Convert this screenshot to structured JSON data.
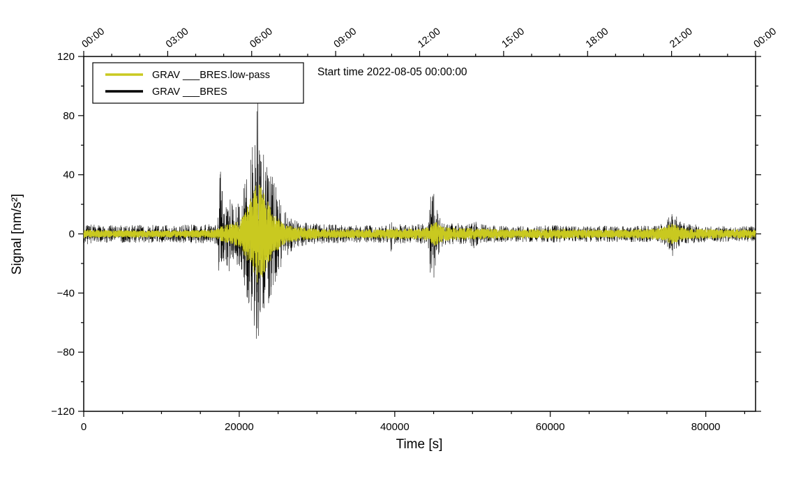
{
  "chart_data": {
    "type": "line",
    "title": "Start time 2022-08-05 00:00:00",
    "xlabel": "Time [s]",
    "ylabel": "Signal [nm/s²]",
    "xlim": [
      0,
      86400
    ],
    "ylim": [
      -120,
      120
    ],
    "grid": false,
    "x_ticks": [
      0,
      20000,
      40000,
      60000,
      80000
    ],
    "x_minor_step": 5000,
    "y_ticks": [
      -120,
      -80,
      -40,
      0,
      40,
      80,
      120
    ],
    "y_minor_step": 20,
    "top_axis": {
      "tick_seconds": [
        0,
        10800,
        21600,
        32400,
        43200,
        54000,
        64800,
        75600,
        86400
      ],
      "labels": [
        "00:00",
        "03:00",
        "06:00",
        "09:00",
        "12:00",
        "15:00",
        "18:00",
        "21:00",
        "00:00"
      ],
      "minor_step": 3600
    },
    "legend": {
      "position": "top-left",
      "entries": [
        {
          "label": "GRAV ___BRES.low-pass",
          "color": "#c9c920"
        },
        {
          "label": "GRAV ___BRES",
          "color": "#000000"
        }
      ]
    },
    "series": [
      {
        "name": "GRAV ___BRES",
        "mode": "raw",
        "color": "#000000",
        "line_width": 0.6,
        "envelope": [
          [
            0,
            8
          ],
          [
            800,
            6.5
          ],
          [
            2000,
            6
          ],
          [
            4000,
            6
          ],
          [
            6000,
            6
          ],
          [
            8000,
            6
          ],
          [
            10000,
            6
          ],
          [
            12000,
            6
          ],
          [
            14000,
            6.5
          ],
          [
            16000,
            6.5
          ],
          [
            17200,
            7
          ],
          [
            17500,
            40
          ],
          [
            17700,
            45
          ],
          [
            17900,
            18
          ],
          [
            18300,
            22
          ],
          [
            18700,
            28
          ],
          [
            19200,
            20
          ],
          [
            19700,
            22
          ],
          [
            20200,
            28
          ],
          [
            20700,
            38
          ],
          [
            21200,
            50
          ],
          [
            21700,
            62
          ],
          [
            22100,
            80
          ],
          [
            22350,
            95
          ],
          [
            22600,
            72
          ],
          [
            22900,
            62
          ],
          [
            23200,
            58
          ],
          [
            23600,
            50
          ],
          [
            24000,
            44
          ],
          [
            24400,
            38
          ],
          [
            24800,
            30
          ],
          [
            25200,
            25
          ],
          [
            25600,
            20
          ],
          [
            26000,
            16
          ],
          [
            26500,
            13
          ],
          [
            27000,
            11
          ],
          [
            27500,
            9
          ],
          [
            28500,
            8
          ],
          [
            30000,
            7
          ],
          [
            32000,
            6.5
          ],
          [
            34000,
            6
          ],
          [
            36000,
            6
          ],
          [
            38000,
            6
          ],
          [
            39300,
            6
          ],
          [
            39500,
            16
          ],
          [
            39700,
            6
          ],
          [
            40000,
            7
          ],
          [
            42000,
            6
          ],
          [
            43800,
            7
          ],
          [
            44300,
            10
          ],
          [
            44600,
            28
          ],
          [
            44900,
            33
          ],
          [
            45200,
            26
          ],
          [
            45500,
            16
          ],
          [
            45900,
            11
          ],
          [
            46500,
            9
          ],
          [
            47500,
            7.5
          ],
          [
            48500,
            7
          ],
          [
            49500,
            6.5
          ],
          [
            50300,
            12
          ],
          [
            50700,
            7
          ],
          [
            52000,
            6
          ],
          [
            54000,
            5.5
          ],
          [
            56000,
            5.5
          ],
          [
            58000,
            5.5
          ],
          [
            60000,
            6
          ],
          [
            62000,
            5.5
          ],
          [
            64000,
            5.5
          ],
          [
            66000,
            5.5
          ],
          [
            68000,
            5.5
          ],
          [
            70000,
            5.5
          ],
          [
            72000,
            5.5
          ],
          [
            74000,
            6
          ],
          [
            74800,
            8
          ],
          [
            75300,
            15
          ],
          [
            75700,
            18
          ],
          [
            76100,
            13
          ],
          [
            76600,
            9
          ],
          [
            77200,
            7
          ],
          [
            78500,
            6.5
          ],
          [
            80000,
            5.5
          ],
          [
            82000,
            5.5
          ],
          [
            84000,
            5
          ],
          [
            86400,
            5.5
          ]
        ]
      },
      {
        "name": "GRAV ___BRES.low-pass",
        "mode": "band",
        "color": "#c9c920",
        "line_width": 1.0,
        "envelope": [
          [
            0,
            3
          ],
          [
            2000,
            2.5
          ],
          [
            6000,
            2.5
          ],
          [
            10000,
            2.5
          ],
          [
            14000,
            2.5
          ],
          [
            17000,
            3
          ],
          [
            17600,
            5
          ],
          [
            18200,
            6
          ],
          [
            19000,
            7
          ],
          [
            19800,
            9
          ],
          [
            20400,
            12
          ],
          [
            20900,
            17
          ],
          [
            21400,
            24
          ],
          [
            21900,
            30
          ],
          [
            22300,
            35
          ],
          [
            22700,
            33
          ],
          [
            23100,
            29
          ],
          [
            23500,
            24
          ],
          [
            24000,
            19
          ],
          [
            24500,
            14
          ],
          [
            25000,
            11
          ],
          [
            25600,
            8
          ],
          [
            26300,
            6
          ],
          [
            27000,
            5
          ],
          [
            28000,
            4.5
          ],
          [
            30000,
            3.5
          ],
          [
            33000,
            3
          ],
          [
            36000,
            3
          ],
          [
            40000,
            3.5
          ],
          [
            43000,
            3.5
          ],
          [
            44400,
            5
          ],
          [
            44800,
            8
          ],
          [
            45300,
            8
          ],
          [
            45800,
            6
          ],
          [
            46500,
            5
          ],
          [
            48000,
            4
          ],
          [
            50000,
            4
          ],
          [
            52000,
            3.5
          ],
          [
            55000,
            3
          ],
          [
            58000,
            3
          ],
          [
            61000,
            3.5
          ],
          [
            64000,
            3
          ],
          [
            67000,
            3
          ],
          [
            70000,
            3
          ],
          [
            73000,
            3.5
          ],
          [
            74800,
            5
          ],
          [
            75400,
            7
          ],
          [
            75900,
            7
          ],
          [
            76500,
            5
          ],
          [
            77500,
            4
          ],
          [
            79000,
            3.5
          ],
          [
            82000,
            3
          ],
          [
            86400,
            3
          ]
        ]
      }
    ]
  }
}
